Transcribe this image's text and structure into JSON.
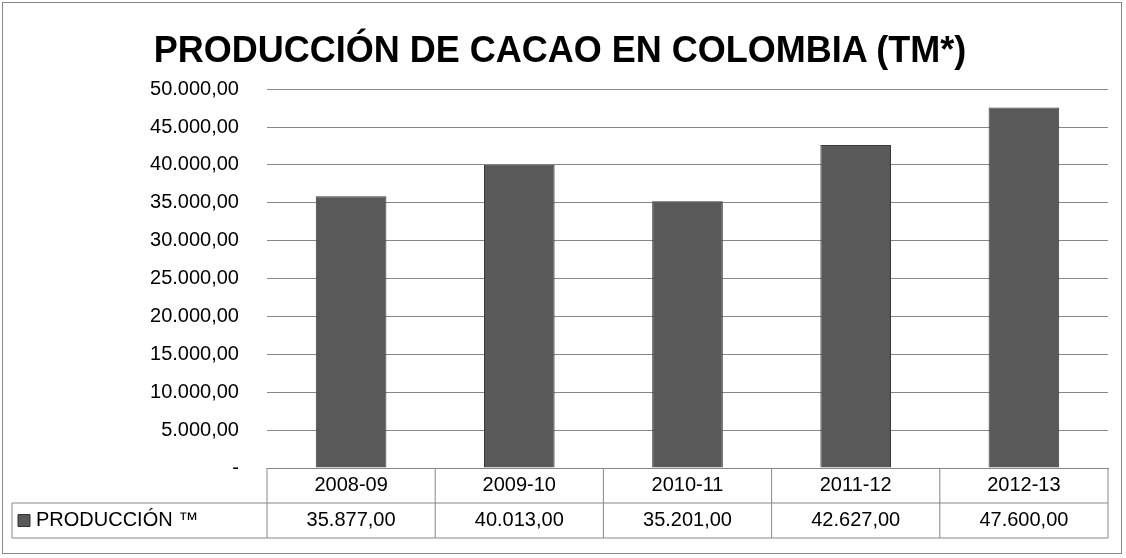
{
  "chart_data": {
    "type": "bar",
    "title": "PRODUCCIÓN DE CACAO EN COLOMBIA (TM*)",
    "categories": [
      "2008-09",
      "2009-10",
      "2010-11",
      "2011-12",
      "2012-13"
    ],
    "series": [
      {
        "name": "PRODUCCIÓN ™",
        "color": "#595959",
        "values": [
          35877,
          40013,
          35201,
          42627,
          47600
        ],
        "value_labels": [
          "35.877,00",
          "40.013,00",
          "35.201,00",
          "42.627,00",
          "47.600,00"
        ]
      }
    ],
    "ylim": [
      0,
      50000
    ],
    "yticks": [
      {
        "value": 0,
        "label": "-"
      },
      {
        "value": 5000,
        "label": "5.000,00"
      },
      {
        "value": 10000,
        "label": "10.000,00"
      },
      {
        "value": 15000,
        "label": "15.000,00"
      },
      {
        "value": 20000,
        "label": "20.000,00"
      },
      {
        "value": 25000,
        "label": "25.000,00"
      },
      {
        "value": 30000,
        "label": "30.000,00"
      },
      {
        "value": 35000,
        "label": "35.000,00"
      },
      {
        "value": 40000,
        "label": "40.000,00"
      },
      {
        "value": 45000,
        "label": "45.000,00"
      },
      {
        "value": 50000,
        "label": "50.000,00"
      }
    ],
    "grid": "y",
    "legend": "bottom"
  }
}
